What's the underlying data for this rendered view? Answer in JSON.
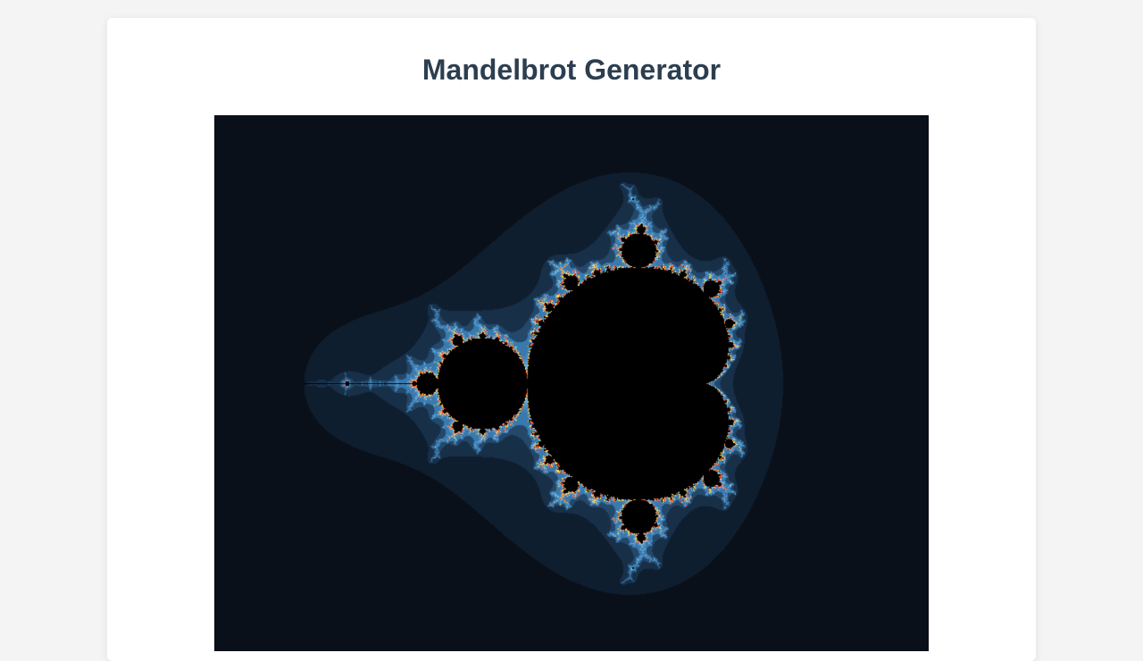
{
  "page": {
    "title": "Mandelbrot Generator"
  },
  "fractal": {
    "type": "mandelbrot",
    "center_re": -0.5,
    "center_im": 0.0,
    "re_range": [
      -2.5,
      1.5
    ],
    "palette": {
      "interior": "#000000",
      "background": "#0a1019",
      "band_1": "#0f1e2f",
      "band_2": "#182f48",
      "band_3": "#23486a",
      "band_4": "#3a79ad",
      "edge_glow": "#7fd0ff",
      "edge_hot_1": "#ffe24a",
      "edge_hot_2": "#ff3b1f"
    }
  }
}
